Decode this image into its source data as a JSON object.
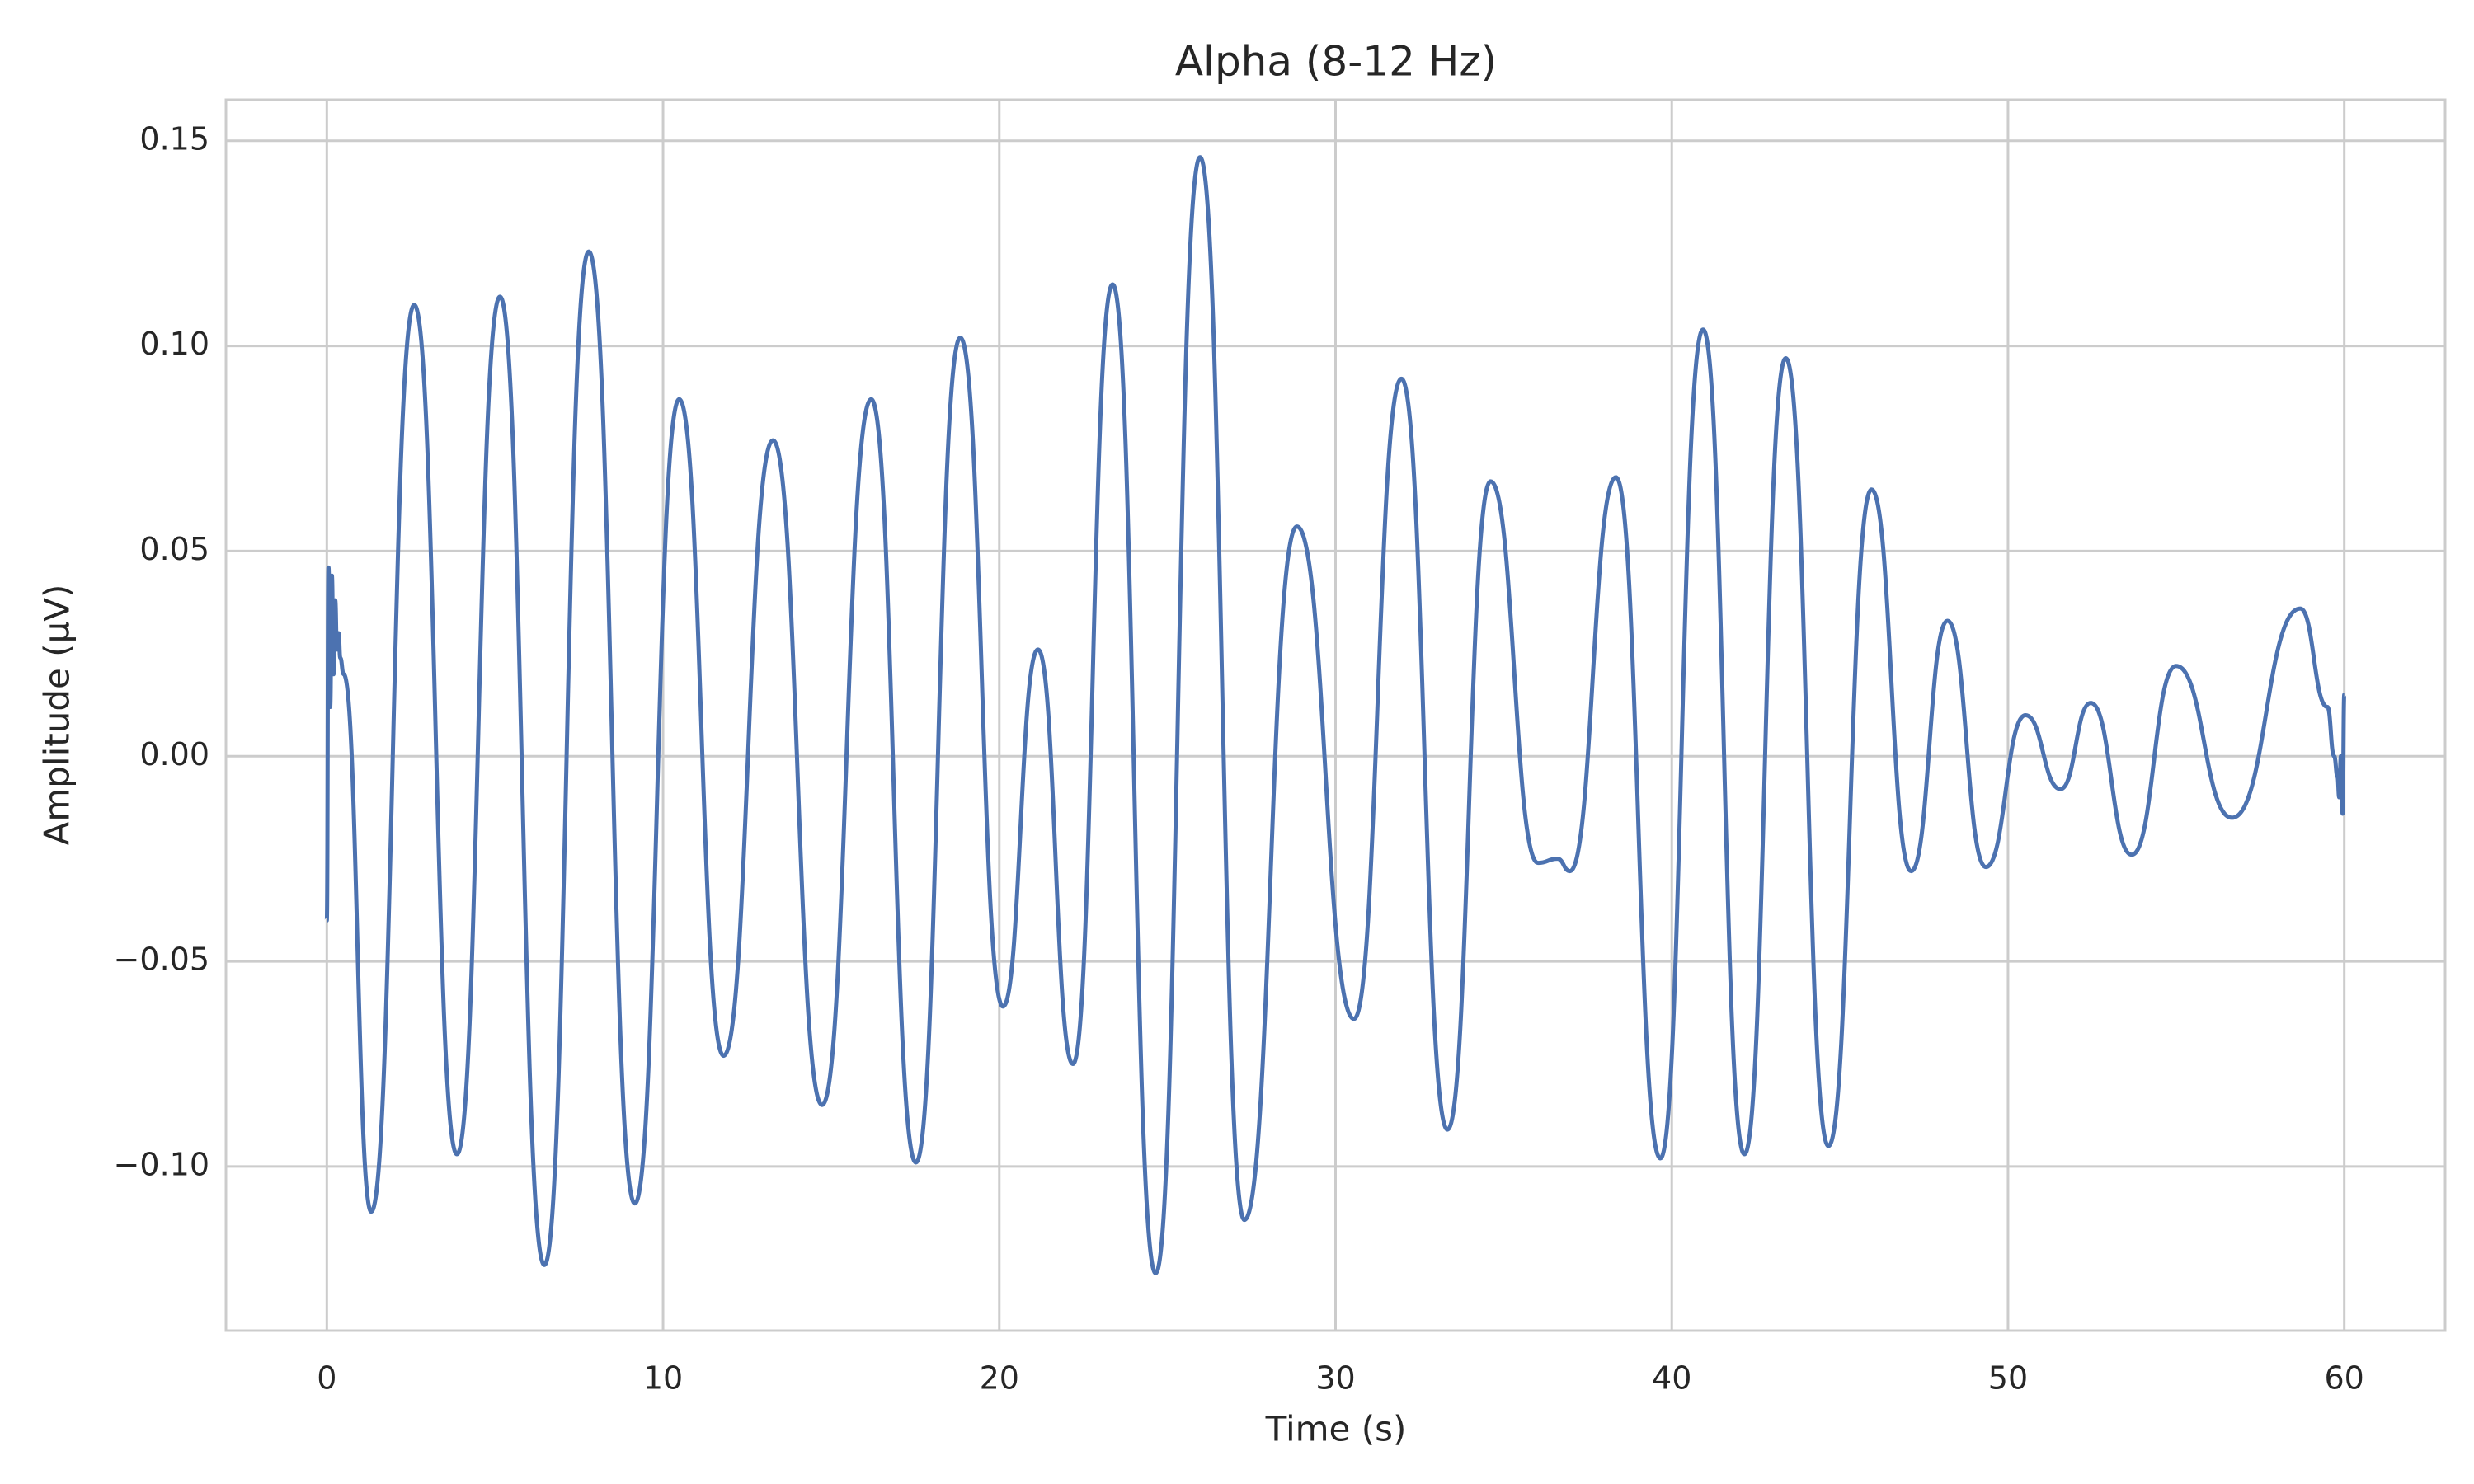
{
  "chart_data": {
    "type": "line",
    "title": "Alpha (8-12 Hz)",
    "x_label": "Time (s)",
    "y_label": "Amplitude (µV)",
    "x": [
      0,
      0.05,
      0.1,
      0.15,
      0.2,
      0.25,
      0.3,
      0.35,
      0.4,
      0.5,
      1.32,
      2.6,
      3.87,
      5.15,
      6.47,
      7.79,
      9.16,
      10.48,
      11.8,
      13.27,
      14.73,
      16.19,
      17.52,
      18.84,
      20.11,
      21.15,
      22.19,
      23.37,
      24.65,
      25.97,
      27.29,
      28.85,
      30.55,
      31.96,
      33.33,
      34.61,
      36.02,
      36.6,
      36.97,
      38.34,
      39.66,
      40.93,
      42.16,
      43.39,
      44.66,
      45.94,
      47.12,
      48.2,
      49.34,
      50.52,
      51.56,
      52.46,
      53.68,
      55.0,
      56.66,
      58.69,
      59.5,
      59.7,
      59.8,
      59.85,
      59.9,
      59.95,
      60
    ],
    "series": [
      {
        "name": "Alpha",
        "color": "#4c72b0",
        "values": [
          -0.04,
          0.046,
          0.012,
          0.044,
          0.02,
          0.038,
          0.026,
          0.03,
          0.024,
          0.02,
          -0.111,
          0.11,
          -0.097,
          0.112,
          -0.124,
          0.123,
          -0.109,
          0.087,
          -0.073,
          0.077,
          -0.085,
          0.087,
          -0.099,
          0.102,
          -0.061,
          0.026,
          -0.075,
          0.115,
          -0.126,
          0.146,
          -0.113,
          0.056,
          -0.064,
          0.092,
          -0.091,
          0.067,
          -0.026,
          -0.025,
          -0.028,
          0.068,
          -0.098,
          0.104,
          -0.097,
          0.097,
          -0.095,
          0.065,
          -0.028,
          0.033,
          -0.027,
          0.01,
          -0.008,
          0.013,
          -0.024,
          0.022,
          -0.015,
          0.036,
          0.012,
          0.0,
          -0.005,
          -0.01,
          0.0,
          -0.014,
          0.015
        ]
      }
    ],
    "xlim": [
      -3,
      63
    ],
    "ylim": [
      -0.14,
      0.16
    ],
    "xticks": [
      0,
      10,
      20,
      30,
      40,
      50,
      60
    ],
    "yticks": [
      {
        "value": -0.1,
        "label": "−0.10"
      },
      {
        "value": -0.05,
        "label": "−0.05"
      },
      {
        "value": 0,
        "label": "0.00"
      },
      {
        "value": 0.05,
        "label": "0.05"
      },
      {
        "value": 0.1,
        "label": "0.10"
      },
      {
        "value": 0.15,
        "label": "0.15"
      }
    ],
    "grid": true
  }
}
